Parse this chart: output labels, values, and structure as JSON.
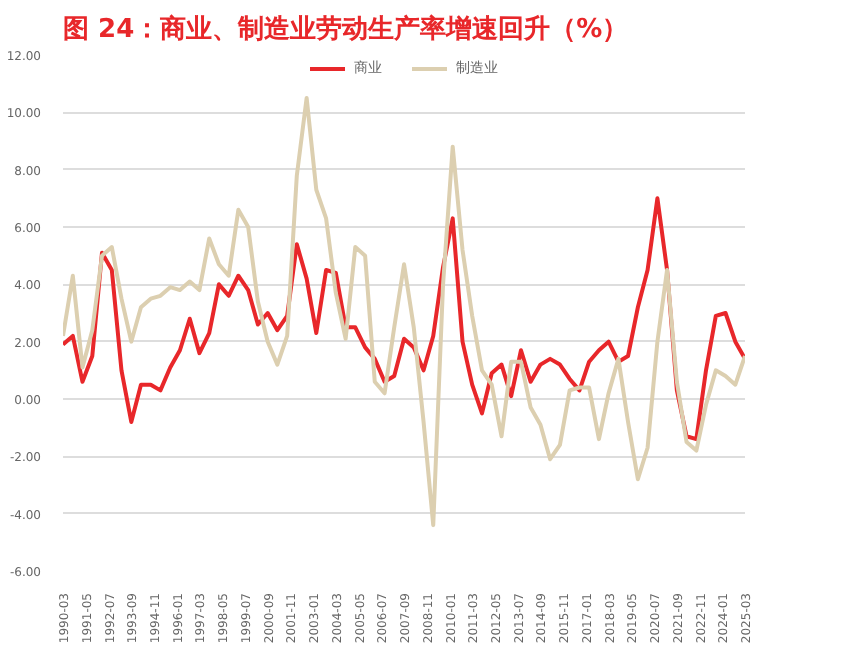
{
  "chart_data": {
    "type": "line",
    "title": "图 24：商业、制造业劳动生产率增速回升（%）",
    "x": [
      "1990-03",
      "1990-09",
      "1991-03",
      "1991-09",
      "1992-03",
      "1992-09",
      "1993-03",
      "1993-09",
      "1994-03",
      "1994-09",
      "1995-03",
      "1995-09",
      "1996-03",
      "1996-09",
      "1997-03",
      "1997-09",
      "1998-03",
      "1998-09",
      "1999-03",
      "1999-09",
      "2000-03",
      "2000-09",
      "2001-03",
      "2001-09",
      "2002-03",
      "2002-09",
      "2003-03",
      "2003-09",
      "2004-03",
      "2004-09",
      "2005-03",
      "2005-09",
      "2006-03",
      "2006-09",
      "2007-03",
      "2007-09",
      "2008-03",
      "2008-09",
      "2009-03",
      "2009-09",
      "2010-03",
      "2010-09",
      "2011-03",
      "2011-09",
      "2012-03",
      "2012-09",
      "2013-03",
      "2013-09",
      "2014-03",
      "2014-09",
      "2015-03",
      "2015-09",
      "2016-03",
      "2016-09",
      "2017-03",
      "2017-09",
      "2018-03",
      "2018-09",
      "2019-03",
      "2019-09",
      "2020-03",
      "2020-09",
      "2021-03",
      "2021-09",
      "2022-03",
      "2022-09",
      "2023-03",
      "2023-09",
      "2024-03",
      "2024-09",
      "2025-03"
    ],
    "series": [
      {
        "name": "商业",
        "color": "#e8272a",
        "values": [
          1.9,
          2.2,
          0.6,
          1.5,
          5.1,
          4.5,
          1.0,
          -0.8,
          0.5,
          0.5,
          0.3,
          1.1,
          1.7,
          2.8,
          1.6,
          2.3,
          4.0,
          3.6,
          4.3,
          3.8,
          2.6,
          3.0,
          2.4,
          2.9,
          5.4,
          4.2,
          2.3,
          4.5,
          4.4,
          2.5,
          2.5,
          1.8,
          1.4,
          0.6,
          0.8,
          2.1,
          1.8,
          1.0,
          2.2,
          4.6,
          6.3,
          2.0,
          0.5,
          -0.5,
          0.9,
          1.2,
          0.1,
          1.7,
          0.6,
          1.2,
          1.4,
          1.2,
          0.7,
          0.3,
          1.3,
          1.7,
          2.0,
          1.3,
          1.5,
          3.2,
          4.5,
          7.0,
          4.5,
          0.3,
          -1.3,
          -1.4,
          1.0,
          2.9,
          3.0,
          2.0,
          1.4
        ]
      },
      {
        "name": "制造业",
        "color": "#dccfb0",
        "values": [
          2.2,
          4.3,
          1.1,
          2.4,
          5.0,
          5.3,
          3.5,
          2.0,
          3.2,
          3.5,
          3.6,
          3.9,
          3.8,
          4.1,
          3.8,
          5.6,
          4.7,
          4.3,
          6.6,
          6.0,
          3.4,
          2.0,
          1.2,
          2.2,
          7.8,
          10.5,
          7.3,
          6.3,
          3.7,
          2.1,
          5.3,
          5.0,
          0.6,
          0.2,
          2.5,
          4.7,
          2.5,
          -0.8,
          -4.4,
          4.0,
          8.8,
          5.2,
          2.9,
          1.0,
          0.5,
          -1.3,
          1.3,
          1.3,
          -0.3,
          -0.9,
          -2.1,
          -1.6,
          0.3,
          0.4,
          0.4,
          -1.4,
          0.2,
          1.4,
          -0.8,
          -2.8,
          -1.7,
          2.0,
          4.5,
          0.6,
          -1.5,
          -1.8,
          -0.2,
          1.0,
          0.8,
          0.5,
          1.5
        ]
      }
    ],
    "xlim": [
      "1990-03",
      "2025-03"
    ],
    "xticks": [
      "1990-03",
      "1991-05",
      "1992-07",
      "1993-09",
      "1994-11",
      "1996-01",
      "1997-03",
      "1998-05",
      "1999-07",
      "2000-09",
      "2001-11",
      "2003-01",
      "2004-03",
      "2005-05",
      "2006-07",
      "2007-09",
      "2008-11",
      "2010-01",
      "2011-03",
      "2012-05",
      "2013-07",
      "2014-09",
      "2015-11",
      "2017-01",
      "2018-03",
      "2019-05",
      "2020-07",
      "2021-09",
      "2022-11",
      "2024-01",
      "2025-03"
    ],
    "ylim": [
      -6,
      12
    ],
    "yticks": [
      {
        "value": -6,
        "label": "-6.00"
      },
      {
        "value": -4,
        "label": "-4.00"
      },
      {
        "value": -2,
        "label": "-2.00"
      },
      {
        "value": 0,
        "label": "0.00"
      },
      {
        "value": 2,
        "label": "2.00"
      },
      {
        "value": 4,
        "label": "4.00"
      },
      {
        "value": 6,
        "label": "6.00"
      },
      {
        "value": 8,
        "label": "8.00"
      },
      {
        "value": 10,
        "label": "10.00"
      },
      {
        "value": 12,
        "label": "12.00"
      }
    ],
    "grid": "y",
    "legend": "top",
    "line_style": "solid"
  }
}
